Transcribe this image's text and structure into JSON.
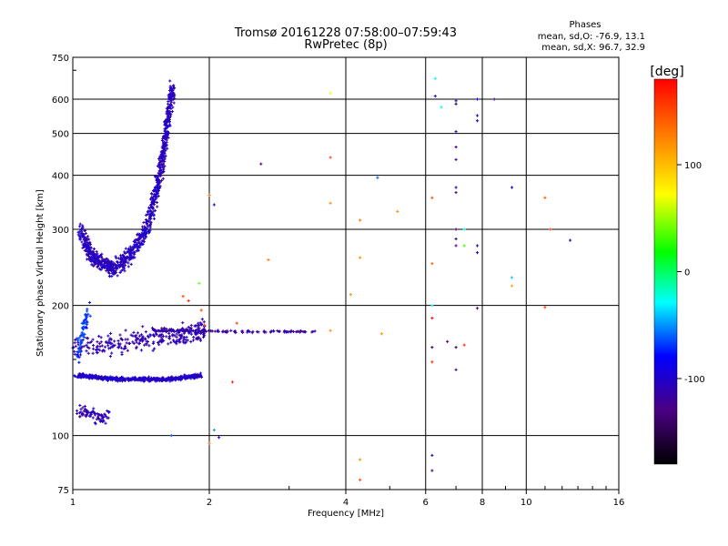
{
  "chart_data": {
    "type": "scatter",
    "title": "Tromsø 20161228 07:58:00–07:59:43",
    "subtitle": "RwPretec (8p)",
    "phase_header": "Phases",
    "phase_stats": [
      "mean, sd,O: -76.9, 13.1",
      "mean, sd,X:  96.7, 32.9"
    ],
    "xlabel": "Frequency [MHz]",
    "ylabel": "Stationary phase Virtual Height [km]",
    "x_scale": "log",
    "y_scale": "log",
    "xlim": [
      1,
      16
    ],
    "ylim": [
      75,
      750
    ],
    "x_ticks": [
      1,
      2,
      4,
      6,
      8,
      10,
      16
    ],
    "x_tick_labels": [
      "1",
      "2",
      "4",
      "6",
      "8",
      "10",
      "16"
    ],
    "y_ticks": [
      75,
      100,
      200,
      300,
      400,
      500,
      600,
      750
    ],
    "y_tick_labels": [
      "75",
      "100",
      "200",
      "300",
      "400",
      "500",
      "600",
      "750"
    ],
    "grid": true,
    "colorbar": {
      "label": "[deg]",
      "range": [
        -180,
        180
      ],
      "ticks": [
        100,
        0,
        -100
      ],
      "tick_labels": [
        "100",
        "0",
        "-100"
      ]
    },
    "traces": [
      {
        "x": [
          1.04,
          1.08,
          1.12,
          1.17,
          1.22,
          1.28,
          1.34,
          1.4,
          1.46,
          1.5,
          1.54,
          1.57,
          1.6,
          1.62,
          1.64,
          1.66
        ],
        "y": [
          300,
          270,
          255,
          248,
          245,
          250,
          262,
          280,
          305,
          340,
          380,
          430,
          480,
          530,
          590,
          640
        ],
        "phase": -105,
        "spread": 0.07,
        "count": 900
      },
      {
        "x": [
          1.02,
          1.15,
          1.3,
          1.45,
          1.6,
          1.75,
          1.92
        ],
        "y": [
          138,
          136,
          135,
          135,
          135,
          136,
          138
        ],
        "phase": -100,
        "spread": 0.015,
        "count": 500
      },
      {
        "x": [
          1.0,
          1.2,
          1.4,
          1.6,
          1.8,
          1.95
        ],
        "y": [
          160,
          162,
          166,
          170,
          172,
          175
        ],
        "phase": -110,
        "spread": 0.08,
        "count": 300
      },
      {
        "x": [
          1.5,
          1.7,
          1.9,
          2.1,
          2.4,
          2.8,
          3.1,
          3.4
        ],
        "y": [
          175,
          175,
          175,
          174,
          174,
          174,
          174,
          174
        ],
        "phase": -115,
        "spread": 0.008,
        "count": 120
      },
      {
        "x": [
          1.02,
          1.1,
          1.2
        ],
        "y": [
          115,
          112,
          110
        ],
        "phase": -110,
        "spread": 0.06,
        "count": 70
      },
      {
        "x": [
          1.02,
          1.05,
          1.08
        ],
        "y": [
          150,
          175,
          195
        ],
        "phase": -70,
        "spread": 0.08,
        "count": 60
      }
    ],
    "points": [
      {
        "x": 6.3,
        "y": 670,
        "phase": -30
      },
      {
        "x": 6.3,
        "y": 610,
        "phase": -110
      },
      {
        "x": 6.5,
        "y": 575,
        "phase": -30
      },
      {
        "x": 7.0,
        "y": 595,
        "phase": -110
      },
      {
        "x": 7.0,
        "y": 585,
        "phase": -150
      },
      {
        "x": 7.8,
        "y": 600,
        "phase": -80
      },
      {
        "x": 8.5,
        "y": 600,
        "phase": -115
      },
      {
        "x": 7.8,
        "y": 550,
        "phase": -110
      },
      {
        "x": 7.8,
        "y": 535,
        "phase": -95
      },
      {
        "x": 7.0,
        "y": 505,
        "phase": -110
      },
      {
        "x": 7.0,
        "y": 465,
        "phase": -140
      },
      {
        "x": 7.0,
        "y": 435,
        "phase": -120
      },
      {
        "x": 7.0,
        "y": 375,
        "phase": -110
      },
      {
        "x": 7.0,
        "y": 365,
        "phase": -125
      },
      {
        "x": 7.0,
        "y": 300,
        "phase": -140
      },
      {
        "x": 7.0,
        "y": 285,
        "phase": -110
      },
      {
        "x": 7.0,
        "y": 275,
        "phase": -125
      },
      {
        "x": 7.3,
        "y": 275,
        "phase": 30
      },
      {
        "x": 7.3,
        "y": 300,
        "phase": -20
      },
      {
        "x": 7.8,
        "y": 275,
        "phase": -110
      },
      {
        "x": 7.8,
        "y": 265,
        "phase": -100
      },
      {
        "x": 9.3,
        "y": 375,
        "phase": -90
      },
      {
        "x": 9.3,
        "y": 232,
        "phase": -40
      },
      {
        "x": 9.3,
        "y": 222,
        "phase": 110
      },
      {
        "x": 11.3,
        "y": 300,
        "phase": 150
      },
      {
        "x": 12.5,
        "y": 283,
        "phase": -115
      },
      {
        "x": 11.0,
        "y": 355,
        "phase": 140
      },
      {
        "x": 11.0,
        "y": 198,
        "phase": 150
      },
      {
        "x": 6.2,
        "y": 355,
        "phase": 150
      },
      {
        "x": 6.2,
        "y": 250,
        "phase": 140
      },
      {
        "x": 6.2,
        "y": 200,
        "phase": -30
      },
      {
        "x": 6.2,
        "y": 187,
        "phase": 175
      },
      {
        "x": 6.2,
        "y": 160,
        "phase": -150
      },
      {
        "x": 6.2,
        "y": 148,
        "phase": 160
      },
      {
        "x": 6.2,
        "y": 90,
        "phase": -110
      },
      {
        "x": 6.2,
        "y": 83,
        "phase": -120
      },
      {
        "x": 6.7,
        "y": 165,
        "phase": -130
      },
      {
        "x": 7.0,
        "y": 160,
        "phase": -150
      },
      {
        "x": 7.0,
        "y": 142,
        "phase": -130
      },
      {
        "x": 7.3,
        "y": 162,
        "phase": 160
      },
      {
        "x": 7.8,
        "y": 197,
        "phase": -120
      },
      {
        "x": 3.7,
        "y": 620,
        "phase": 70
      },
      {
        "x": 3.7,
        "y": 440,
        "phase": 150
      },
      {
        "x": 3.7,
        "y": 345,
        "phase": 120
      },
      {
        "x": 4.7,
        "y": 395,
        "phase": -60
      },
      {
        "x": 4.3,
        "y": 315,
        "phase": 130
      },
      {
        "x": 5.2,
        "y": 330,
        "phase": 120
      },
      {
        "x": 4.3,
        "y": 258,
        "phase": 120
      },
      {
        "x": 2.6,
        "y": 425,
        "phase": -120
      },
      {
        "x": 2.7,
        "y": 255,
        "phase": 130
      },
      {
        "x": 4.1,
        "y": 212,
        "phase": 120
      },
      {
        "x": 4.8,
        "y": 172,
        "phase": 120
      },
      {
        "x": 3.7,
        "y": 175,
        "phase": 120
      },
      {
        "x": 2.25,
        "y": 133,
        "phase": 160
      },
      {
        "x": 2.0,
        "y": 360,
        "phase": 140
      },
      {
        "x": 2.05,
        "y": 342,
        "phase": -110
      },
      {
        "x": 2.3,
        "y": 182,
        "phase": 150
      },
      {
        "x": 2.0,
        "y": 96,
        "phase": 130
      },
      {
        "x": 2.05,
        "y": 103,
        "phase": -50
      },
      {
        "x": 2.1,
        "y": 99,
        "phase": -100
      },
      {
        "x": 4.3,
        "y": 88,
        "phase": 120
      },
      {
        "x": 4.3,
        "y": 79,
        "phase": 150
      },
      {
        "x": 1.65,
        "y": 100,
        "phase": -60
      },
      {
        "x": 1.9,
        "y": 225,
        "phase": 40
      },
      {
        "x": 1.75,
        "y": 210,
        "phase": 150
      },
      {
        "x": 1.8,
        "y": 205,
        "phase": 165
      },
      {
        "x": 1.95,
        "y": 180,
        "phase": 145
      },
      {
        "x": 1.92,
        "y": 195,
        "phase": 150
      }
    ]
  }
}
